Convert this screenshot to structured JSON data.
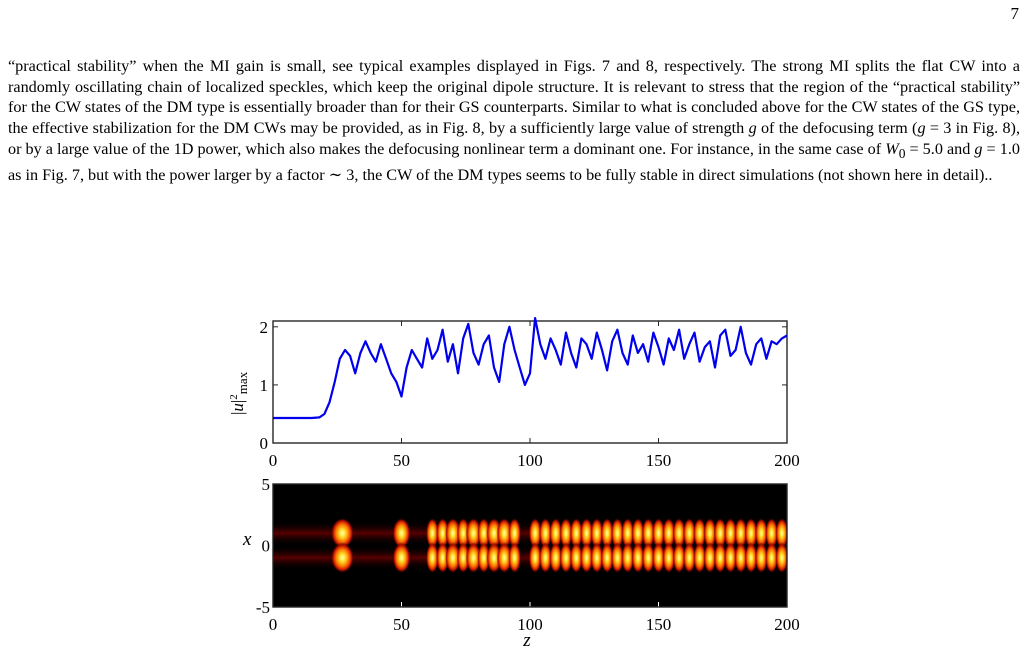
{
  "page": {
    "number": "7"
  },
  "paragraph": {
    "p1": "“practical stability” when the MI gain is small, see typical examples displayed in Figs. 7 and 8, respectively. The strong MI splits the flat CW into a randomly oscillating chain of localized speckles, which keep the original dipole structure. It is relevant to stress that the region of the “practical stability” for the CW states of the DM type is essentially broader than for their GS counterparts. Similar to what is concluded above for the CW states of the GS type, the effective stabilization for the DM CWs may be provided, as in Fig. 8, by a sufficiently large value of strength ",
    "g1": "g",
    "p2": " of the defocusing term (",
    "g2": "g",
    "p3": " = 3 in Fig. 8), or by a large value of the 1D power, which also makes the defocusing nonlinear term a dominant one. For instance, in the same case of ",
    "w0": "W",
    "w0sub": "0",
    "p4": " = 5.0 and ",
    "g3": "g",
    "p5": " = 1.0 as in Fig. 7, but with the power larger by a factor ∼ 3, the CW of the DM types seems to be fully stable in direct simulations (not shown here in detail).."
  },
  "chart_data": [
    {
      "type": "line",
      "ylabel": "|u|²max",
      "xlim": [
        0,
        200
      ],
      "ylim": [
        0,
        2.1
      ],
      "xticks": [
        "0",
        "50",
        "100",
        "150",
        "200"
      ],
      "yticks": [
        "0",
        "1",
        "2"
      ],
      "line_color": "#0000ee",
      "series": [
        {
          "x": [
            0,
            5,
            10,
            15,
            18,
            20,
            22,
            24,
            26,
            28,
            30,
            32,
            34,
            36,
            38,
            40,
            42,
            44,
            46,
            48,
            50,
            52,
            54,
            56,
            58,
            60,
            62,
            64,
            66,
            68,
            70,
            72,
            74,
            76,
            78,
            80,
            82,
            84,
            86,
            88,
            90,
            92,
            94,
            96,
            98,
            100,
            102,
            104,
            106,
            108,
            110,
            112,
            114,
            116,
            118,
            120,
            122,
            124,
            126,
            128,
            130,
            132,
            134,
            136,
            138,
            140,
            142,
            144,
            146,
            148,
            150,
            152,
            154,
            156,
            158,
            160,
            162,
            164,
            166,
            168,
            170,
            172,
            174,
            176,
            178,
            180,
            182,
            184,
            186,
            188,
            190,
            192,
            194,
            196,
            198,
            200
          ],
          "y": [
            0.43,
            0.43,
            0.43,
            0.43,
            0.44,
            0.5,
            0.7,
            1.05,
            1.45,
            1.6,
            1.5,
            1.2,
            1.55,
            1.75,
            1.55,
            1.4,
            1.7,
            1.45,
            1.2,
            1.05,
            0.8,
            1.3,
            1.6,
            1.45,
            1.3,
            1.8,
            1.45,
            1.6,
            1.95,
            1.4,
            1.7,
            1.2,
            1.8,
            2.05,
            1.55,
            1.35,
            1.7,
            1.85,
            1.3,
            1.05,
            1.7,
            2.0,
            1.6,
            1.3,
            1.0,
            1.2,
            2.15,
            1.7,
            1.45,
            1.8,
            1.6,
            1.35,
            1.9,
            1.55,
            1.3,
            1.8,
            1.7,
            1.45,
            1.9,
            1.6,
            1.25,
            1.75,
            1.95,
            1.55,
            1.35,
            1.85,
            1.55,
            1.7,
            1.4,
            1.9,
            1.65,
            1.35,
            1.8,
            1.6,
            1.95,
            1.45,
            1.7,
            1.9,
            1.4,
            1.65,
            1.75,
            1.3,
            1.85,
            1.95,
            1.5,
            1.6,
            2.0,
            1.55,
            1.35,
            1.7,
            1.8,
            1.45,
            1.75,
            1.7,
            1.8,
            1.85
          ]
        }
      ]
    },
    {
      "type": "heatmap",
      "xlabel": "z",
      "ylabel": "x",
      "xlim": [
        0,
        200
      ],
      "ylim": [
        -5,
        5
      ],
      "xticks": [
        "0",
        "50",
        "100",
        "150",
        "200"
      ],
      "yticks": [
        "5",
        "0",
        "-5"
      ],
      "colormap": "hot",
      "lobe_centers_x": [
        1.0,
        -1.0
      ],
      "base_intensity": 0.55,
      "speckle_z": [
        27,
        50,
        62,
        66,
        70,
        74,
        78,
        82,
        86,
        90,
        94,
        102,
        106,
        110,
        114,
        118,
        122,
        126,
        130,
        134,
        138,
        142,
        146,
        150,
        154,
        158,
        162,
        166,
        170,
        174,
        178,
        182,
        186,
        190,
        194,
        198
      ],
      "speckle_width_z": [
        4.5,
        3.5,
        2.5,
        2.5,
        3,
        2.5,
        3,
        2.5,
        3,
        3,
        2.5,
        2.5,
        2.5,
        2.5,
        2.5,
        2.5,
        2.5,
        2.5,
        2.5,
        2.5,
        2.5,
        2.5,
        2.5,
        2.5,
        2.5,
        2.5,
        2.5,
        2.5,
        2.5,
        2.5,
        2.5,
        2.5,
        2.5,
        2.5,
        2.5,
        2.5
      ]
    }
  ]
}
